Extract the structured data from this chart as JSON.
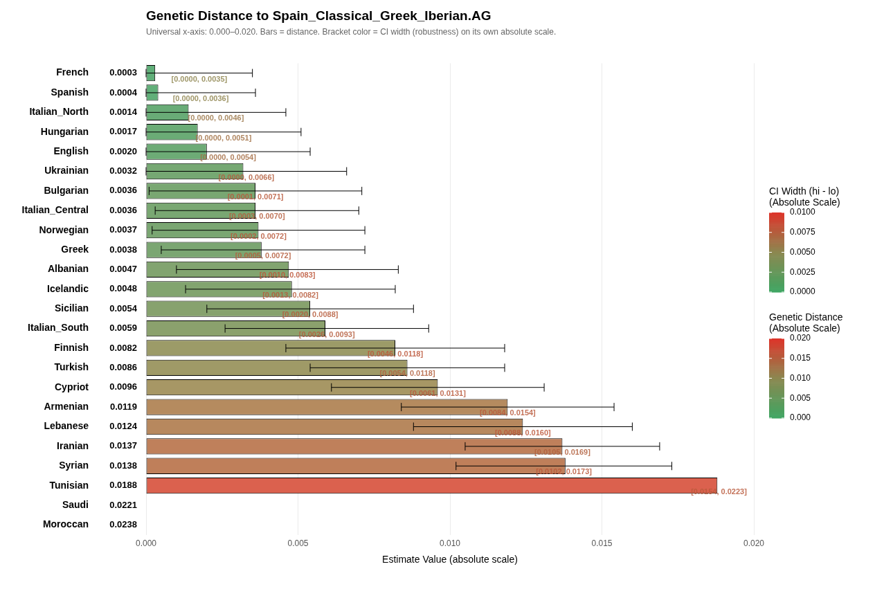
{
  "chart_data": {
    "type": "bar",
    "orientation": "horizontal",
    "title": "Genetic Distance to Spain_Classical_Greek_Iberian.AG",
    "subtitle": "Universal x-axis: 0.000–0.020. Bars = distance. Bracket color = CI width (robustness) on its own absolute scale.",
    "xlabel": "Estimate Value (absolute scale)",
    "categories": [
      "French",
      "Spanish",
      "Italian_North",
      "Hungarian",
      "English",
      "Ukrainian",
      "Bulgarian",
      "Italian_Central",
      "Norwegian",
      "Greek",
      "Albanian",
      "Icelandic",
      "Sicilian",
      "Italian_South",
      "Finnish",
      "Turkish",
      "Cypriot",
      "Armenian",
      "Lebanese",
      "Iranian",
      "Syrian",
      "Tunisian",
      "Saudi",
      "Moroccan"
    ],
    "values": [
      0.0003,
      0.0004,
      0.0014,
      0.0017,
      0.002,
      0.0032,
      0.0036,
      0.0036,
      0.0037,
      0.0038,
      0.0047,
      0.0048,
      0.0054,
      0.0059,
      0.0082,
      0.0086,
      0.0096,
      0.0119,
      0.0124,
      0.0137,
      0.0138,
      0.0188,
      null,
      null
    ],
    "value_labels": [
      "0.0003",
      "0.0004",
      "0.0014",
      "0.0017",
      "0.0020",
      "0.0032",
      "0.0036",
      "0.0036",
      "0.0037",
      "0.0038",
      "0.0047",
      "0.0048",
      "0.0054",
      "0.0059",
      "0.0082",
      "0.0086",
      "0.0096",
      "0.0119",
      "0.0124",
      "0.0137",
      "0.0138",
      "0.0188",
      "0.0221",
      "0.0238"
    ],
    "colors": [
      "#60af79",
      "#61af79",
      "#69ac77",
      "#6bac76",
      "#6dab76",
      "#76a873",
      "#79a772",
      "#79a772",
      "#7aa672",
      "#7ba672",
      "#82a470",
      "#82a46f",
      "#87a26e",
      "#8ba16d",
      "#9c9b68",
      "#9f9a67",
      "#a79765",
      "#b58b5f",
      "#b7885e",
      "#bf805b",
      "#bf7f5a",
      "#db614e",
      "#db614e",
      "#db614e"
    ],
    "errors": [
      [
        0,
        0.0035
      ],
      [
        0,
        0.0036
      ],
      [
        0,
        0.0046
      ],
      [
        0,
        0.0051
      ],
      [
        0,
        0.0054
      ],
      [
        0,
        0.0066
      ],
      [
        0.0001,
        0.0071
      ],
      [
        0.0003,
        0.007
      ],
      [
        0.0002,
        0.0072
      ],
      [
        0.0005,
        0.0072
      ],
      [
        0.001,
        0.0083
      ],
      [
        0.0013,
        0.0082
      ],
      [
        0.002,
        0.0088
      ],
      [
        0.0026,
        0.0093
      ],
      [
        0.0046,
        0.0118
      ],
      [
        0.0054,
        0.0118
      ],
      [
        0.0061,
        0.0131
      ],
      [
        0.0084,
        0.0154
      ],
      [
        0.0088,
        0.016
      ],
      [
        0.0105,
        0.0169
      ],
      [
        0.0102,
        0.0173
      ],
      null,
      null,
      null
    ],
    "xlim": [
      0,
      0.02
    ],
    "xticks": [
      {
        "value": 0,
        "label": "0.000"
      },
      {
        "value": 0.005,
        "label": "0.005"
      },
      {
        "value": 0.01,
        "label": "0.010"
      },
      {
        "value": 0.015,
        "label": "0.015"
      },
      {
        "value": 0.02,
        "label": "0.020"
      }
    ],
    "grid": "x",
    "clabel": "Genetic Distance\n(Absolute Scale)",
    "clim": [
      0,
      0.02
    ],
    "cticks": [
      {
        "value": 0,
        "label": "0.000"
      },
      {
        "value": 0.005,
        "label": "0.005"
      },
      {
        "value": 0.01,
        "label": "0.010"
      },
      {
        "value": 0.015,
        "label": "0.015"
      },
      {
        "value": 0.02,
        "label": "0.020"
      }
    ],
    "annotations": [
      "CI Width (hi - lo)\n(Absolute Scale)",
      "0.0100",
      "0.0075",
      "0.0050",
      "0.0025",
      "0.0000",
      {
        "text": "[0.0000, 0.0035]",
        "x": 0.00175,
        "y": "French"
      },
      {
        "text": "[0.0000, 0.0036]",
        "x": 0.0018,
        "y": "Spanish"
      },
      {
        "text": "[0.0000, 0.0046]",
        "x": 0.0023,
        "y": "Italian_North"
      },
      {
        "text": "[0.0000, 0.0051]",
        "x": 0.00255,
        "y": "Hungarian"
      },
      {
        "text": "[0.0000, 0.0054]",
        "x": 0.0027,
        "y": "English"
      },
      {
        "text": "[0.0000, 0.0066]",
        "x": 0.0033,
        "y": "Ukrainian"
      },
      {
        "text": "[0.0001, 0.0071]",
        "x": 0.0036,
        "y": "Bulgarian"
      },
      {
        "text": "[0.0003, 0.0070]",
        "x": 0.00365,
        "y": "Italian_Central"
      },
      {
        "text": "[0.0002, 0.0072]",
        "x": 0.0037,
        "y": "Norwegian"
      },
      {
        "text": "[0.0005, 0.0072]",
        "x": 0.00385,
        "y": "Greek"
      },
      {
        "text": "[0.0010, 0.0083]",
        "x": 0.00465,
        "y": "Albanian"
      },
      {
        "text": "[0.0013, 0.0082]",
        "x": 0.00475,
        "y": "Icelandic"
      },
      {
        "text": "[0.0020, 0.0088]",
        "x": 0.0054,
        "y": "Sicilian"
      },
      {
        "text": "[0.0026, 0.0093]",
        "x": 0.00595,
        "y": "Italian_South"
      },
      {
        "text": "[0.0046, 0.0118]",
        "x": 0.0082,
        "y": "Finnish"
      },
      {
        "text": "[0.0054, 0.0118]",
        "x": 0.0086,
        "y": "Turkish"
      },
      {
        "text": "[0.0061, 0.0131]",
        "x": 0.0096,
        "y": "Cypriot"
      },
      {
        "text": "[0.0084, 0.0154]",
        "x": 0.0119,
        "y": "Armenian"
      },
      {
        "text": "[0.0088, 0.0160]",
        "x": 0.0124,
        "y": "Lebanese"
      },
      {
        "text": "[0.0105, 0.0169]",
        "x": 0.0137,
        "y": "Iranian"
      },
      {
        "text": "[0.0102, 0.0173]",
        "x": 0.01375,
        "y": "Syrian"
      },
      {
        "text": "[0.0154, 0.0223]",
        "x": 0.01885,
        "y": "Tunisian"
      }
    ]
  }
}
